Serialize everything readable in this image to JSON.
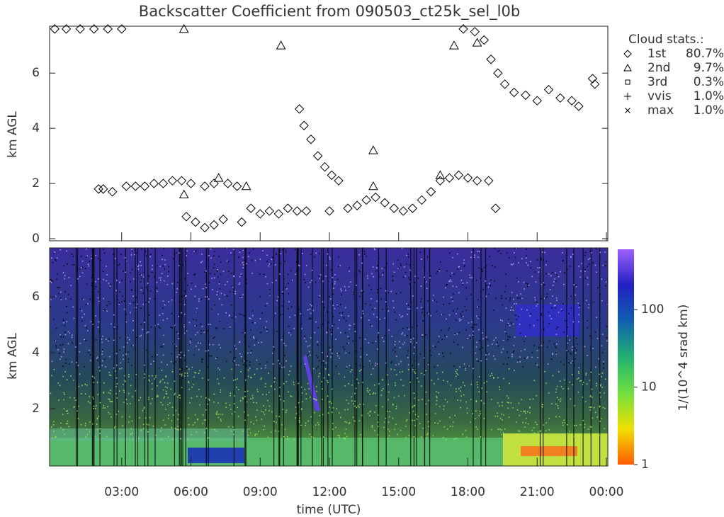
{
  "chart_data": [
    {
      "type": "scatter",
      "title": "Backscatter Coefficient from 090503_ct25k_sel_l0b",
      "ylabel": "km AGL",
      "xlim": [
        0,
        24
      ],
      "ylim": [
        0,
        7.7
      ],
      "yticks": [
        0,
        2,
        4,
        6
      ],
      "legend_title": "Cloud stats.:",
      "series": [
        {
          "name": "1st",
          "stat": "80.7%",
          "marker": "diamond",
          "color": "#000000",
          "x": [
            0.1,
            0.6,
            1.2,
            1.8,
            2.4,
            3.0,
            2.0,
            2.2,
            2.6,
            3.2,
            3.6,
            4.0,
            4.4,
            4.8,
            5.2,
            5.6,
            6.0,
            6.6,
            7.0,
            7.6,
            8.0,
            5.8,
            6.2,
            6.6,
            7.0,
            7.4,
            8.2,
            8.6,
            9.0,
            9.4,
            9.8,
            10.2,
            10.6,
            11.0,
            10.7,
            10.9,
            11.2,
            11.5,
            11.8,
            12.1,
            12.4,
            12.0,
            12.8,
            13.2,
            13.6,
            14.0,
            14.4,
            14.8,
            15.2,
            15.6,
            16.0,
            16.4,
            16.8,
            17.2,
            17.6,
            18.0,
            18.4,
            18.9,
            19.2,
            17.8,
            18.3,
            18.7,
            19.0,
            19.3,
            19.6,
            20.0,
            20.5,
            21.0,
            21.5,
            22.0,
            22.5,
            22.8,
            23.4,
            23.5
          ],
          "y": [
            7.6,
            7.6,
            7.6,
            7.6,
            7.6,
            7.6,
            1.8,
            1.8,
            1.7,
            1.9,
            1.9,
            1.9,
            2.0,
            2.0,
            2.1,
            2.1,
            2.0,
            1.9,
            2.0,
            2.0,
            1.9,
            0.8,
            0.6,
            0.4,
            0.5,
            0.7,
            0.6,
            1.1,
            0.9,
            1.0,
            0.9,
            1.1,
            1.0,
            1.0,
            4.7,
            4.1,
            3.6,
            3.0,
            2.6,
            2.3,
            2.1,
            1.0,
            1.1,
            1.2,
            1.4,
            1.5,
            1.3,
            1.1,
            1.0,
            1.1,
            1.4,
            1.7,
            2.1,
            2.2,
            2.3,
            2.2,
            2.1,
            2.1,
            1.1,
            7.6,
            7.5,
            7.2,
            6.5,
            6.0,
            5.6,
            5.3,
            5.2,
            5.0,
            5.4,
            5.1,
            5.0,
            4.8,
            5.8,
            5.6
          ]
        },
        {
          "name": "2nd",
          "stat": "9.7%",
          "marker": "triangle",
          "color": "#000000",
          "x": [
            5.7,
            9.9,
            5.7,
            13.9,
            13.9,
            16.8,
            7.2,
            8.4,
            17.4,
            18.4
          ],
          "y": [
            7.6,
            7.0,
            1.6,
            3.2,
            1.9,
            2.3,
            2.2,
            1.9,
            7.0,
            7.1
          ]
        },
        {
          "name": "3rd",
          "stat": "0.3%",
          "marker": "square",
          "color": "#000000",
          "x": [],
          "y": []
        },
        {
          "name": "vvis",
          "stat": "1.0%",
          "marker": "plus",
          "color": "#000000",
          "x": [],
          "y": []
        },
        {
          "name": "max",
          "stat": "1.0%",
          "marker": "cross",
          "color": "#000000",
          "x": [],
          "y": []
        }
      ]
    },
    {
      "type": "heatmap",
      "ylabel": "km AGL",
      "xlabel": "time (UTC)",
      "xlim": [
        0,
        24
      ],
      "xticks": [
        {
          "value": 3,
          "label": "03:00"
        },
        {
          "value": 6,
          "label": "06:00"
        },
        {
          "value": 9,
          "label": "09:00"
        },
        {
          "value": 12,
          "label": "12:00"
        },
        {
          "value": 15,
          "label": "15:00"
        },
        {
          "value": 18,
          "label": "18:00"
        },
        {
          "value": 21,
          "label": "21:00"
        },
        {
          "value": 24,
          "label": "00:00"
        }
      ],
      "ylim": [
        0,
        7.75
      ],
      "yticks": [
        2,
        4,
        6
      ],
      "colorbar_label": "1/(10^4 srad km)",
      "clim": [
        1,
        600
      ],
      "log_color": true,
      "cticks": [
        1,
        10,
        100
      ],
      "colormap": [
        "#ff5a00",
        "#f0e000",
        "#70e040",
        "#20b070",
        "#1060b0",
        "#2020c0",
        "#a060ff"
      ]
    }
  ]
}
